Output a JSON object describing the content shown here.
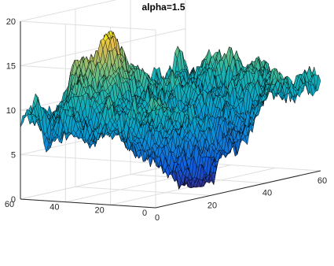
{
  "chart_data": {
    "type": "surface",
    "title": "alpha=1.5",
    "xlabel": "",
    "ylabel": "",
    "zlabel": "",
    "x_range": [
      0,
      60
    ],
    "y_range": [
      0,
      60
    ],
    "z_range": [
      0,
      20
    ],
    "x_ticks": [
      "0",
      "20",
      "40",
      "60"
    ],
    "y_ticks": [
      "0",
      "20",
      "40",
      "60"
    ],
    "z_ticks": [
      "0",
      "5",
      "10",
      "15",
      "20"
    ],
    "grid": true,
    "colormap": "parula",
    "grid_resolution": 64,
    "colors": {
      "edge": "#000000",
      "axis": "#262626",
      "grid": "#dfdfdf"
    },
    "surface_description": "fractal random surface; high ridge (about 15-20) near the back, low basin (about 0-3) near the front-center, edges around 7-12"
  }
}
